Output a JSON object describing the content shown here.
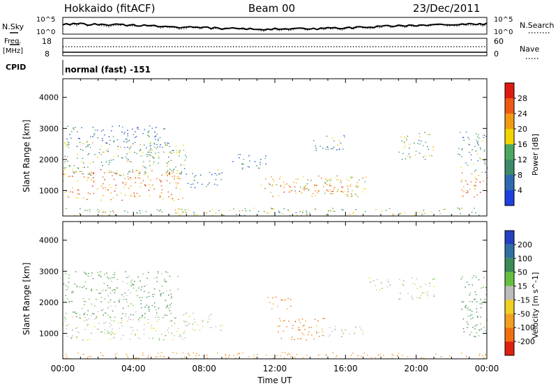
{
  "header": {
    "site": "Hokkaido (fitACF)",
    "beam": "Beam 00",
    "date": "23/Dec/2011"
  },
  "top_panels": {
    "nsky_label": "N.Sky",
    "nsearch_label": "N.Search",
    "noise_ticks_left": [
      "10^5",
      "10^0"
    ],
    "noise_ticks_right": [
      "10^5",
      "10^0"
    ],
    "freq_label_line1": "Freq.",
    "freq_label_line2": "[MHz]",
    "freq_ticks": [
      "18",
      "8"
    ],
    "nave_label": "Nave",
    "nave_ticks": [
      "60",
      "0"
    ],
    "cpid_label": "CPID",
    "cpid_value": "normal (fast) -151"
  },
  "axes": {
    "ylabel": "Slant Range [km]",
    "xlabel": "Time UT",
    "x_ticks": [
      "00:00",
      "04:00",
      "08:00",
      "12:00",
      "16:00",
      "20:00",
      "00:00"
    ],
    "y_ticks": [
      "1000",
      "2000",
      "3000",
      "4000"
    ],
    "x_range_hours": [
      0,
      24
    ],
    "y_range_km": [
      180,
      4600
    ]
  },
  "colors": {
    "power": [
      "#1f3fe0",
      "#2f6ab0",
      "#3d8a6a",
      "#4aa860",
      "#f2d400",
      "#f09a14",
      "#ee5a14",
      "#dd1a10"
    ],
    "velocity": [
      "#2540c0",
      "#2f70a0",
      "#3c8a55",
      "#66c040",
      "#bcbcbc",
      "#f0d020",
      "#f0a020",
      "#f07010",
      "#e02010"
    ],
    "ground": "#bcbcbc"
  },
  "chart_data": [
    {
      "type": "heatmap",
      "name": "power",
      "colorbar_label": "Power [dB]",
      "colorbar_ticks": [
        "4",
        "8",
        "12",
        "16",
        "20",
        "24",
        "28"
      ],
      "colorbar_range": [
        0,
        30
      ],
      "x_unit": "hours UT",
      "y_unit": "km",
      "regions": [
        {
          "t0": 0.0,
          "t1": 6.8,
          "r0": 700,
          "r1": 1700,
          "level": 22
        },
        {
          "t0": 0.0,
          "t1": 7.0,
          "r0": 1500,
          "r1": 2600,
          "level": 13
        },
        {
          "t0": 0.2,
          "t1": 6.0,
          "r0": 2400,
          "r1": 3100,
          "level": 6
        },
        {
          "t0": 7.0,
          "t1": 9.0,
          "r0": 1100,
          "r1": 1700,
          "level": 9
        },
        {
          "t0": 9.6,
          "t1": 11.5,
          "r0": 1700,
          "r1": 2200,
          "level": 7
        },
        {
          "t0": 11.2,
          "t1": 17.2,
          "r0": 800,
          "r1": 1500,
          "level": 18
        },
        {
          "t0": 12.2,
          "t1": 16.2,
          "r0": 900,
          "r1": 1200,
          "level": 24
        },
        {
          "t0": 14.0,
          "t1": 16.0,
          "r0": 2300,
          "r1": 2800,
          "level": 10
        },
        {
          "t0": 19.0,
          "t1": 21.0,
          "r0": 2000,
          "r1": 2900,
          "level": 12
        },
        {
          "t0": 22.5,
          "t1": 24.0,
          "r0": 800,
          "r1": 1700,
          "level": 22
        },
        {
          "t0": 22.3,
          "t1": 24.0,
          "r0": 1600,
          "r1": 2900,
          "level": 9
        },
        {
          "t0": 0.0,
          "t1": 24.0,
          "r0": 200,
          "r1": 450,
          "level": 14
        }
      ]
    },
    {
      "type": "heatmap",
      "name": "velocity",
      "colorbar_label": "Velocity [m s^-1]",
      "colorbar_ticks": [
        "200",
        "100",
        "50",
        "15",
        "-15",
        "-50",
        "-100",
        "-200"
      ],
      "colorbar_range": [
        -250,
        250
      ],
      "x_unit": "hours UT",
      "y_unit": "km",
      "regions": [
        {
          "t0": 0.0,
          "t1": 7.0,
          "r0": 800,
          "r1": 1600,
          "value": 0
        },
        {
          "t0": 0.0,
          "t1": 6.5,
          "r0": 1500,
          "r1": 3000,
          "value": 30
        },
        {
          "t0": 6.8,
          "t1": 9.0,
          "r0": 1100,
          "r1": 1700,
          "value": 0
        },
        {
          "t0": 11.5,
          "t1": 13.0,
          "r0": 1800,
          "r1": 2200,
          "value": -80
        },
        {
          "t0": 12.0,
          "t1": 14.8,
          "r0": 800,
          "r1": 1500,
          "value": -90
        },
        {
          "t0": 14.2,
          "t1": 17.0,
          "r0": 900,
          "r1": 1300,
          "value": 0
        },
        {
          "t0": 17.0,
          "t1": 18.5,
          "r0": 2400,
          "r1": 2800,
          "value": 0
        },
        {
          "t0": 19.0,
          "t1": 21.0,
          "r0": 2100,
          "r1": 2800,
          "value": 0
        },
        {
          "t0": 22.5,
          "t1": 24.0,
          "r0": 900,
          "r1": 2900,
          "value": 40
        },
        {
          "t0": 0.0,
          "t1": 24.0,
          "r0": 200,
          "r1": 400,
          "value": -60
        }
      ]
    }
  ]
}
